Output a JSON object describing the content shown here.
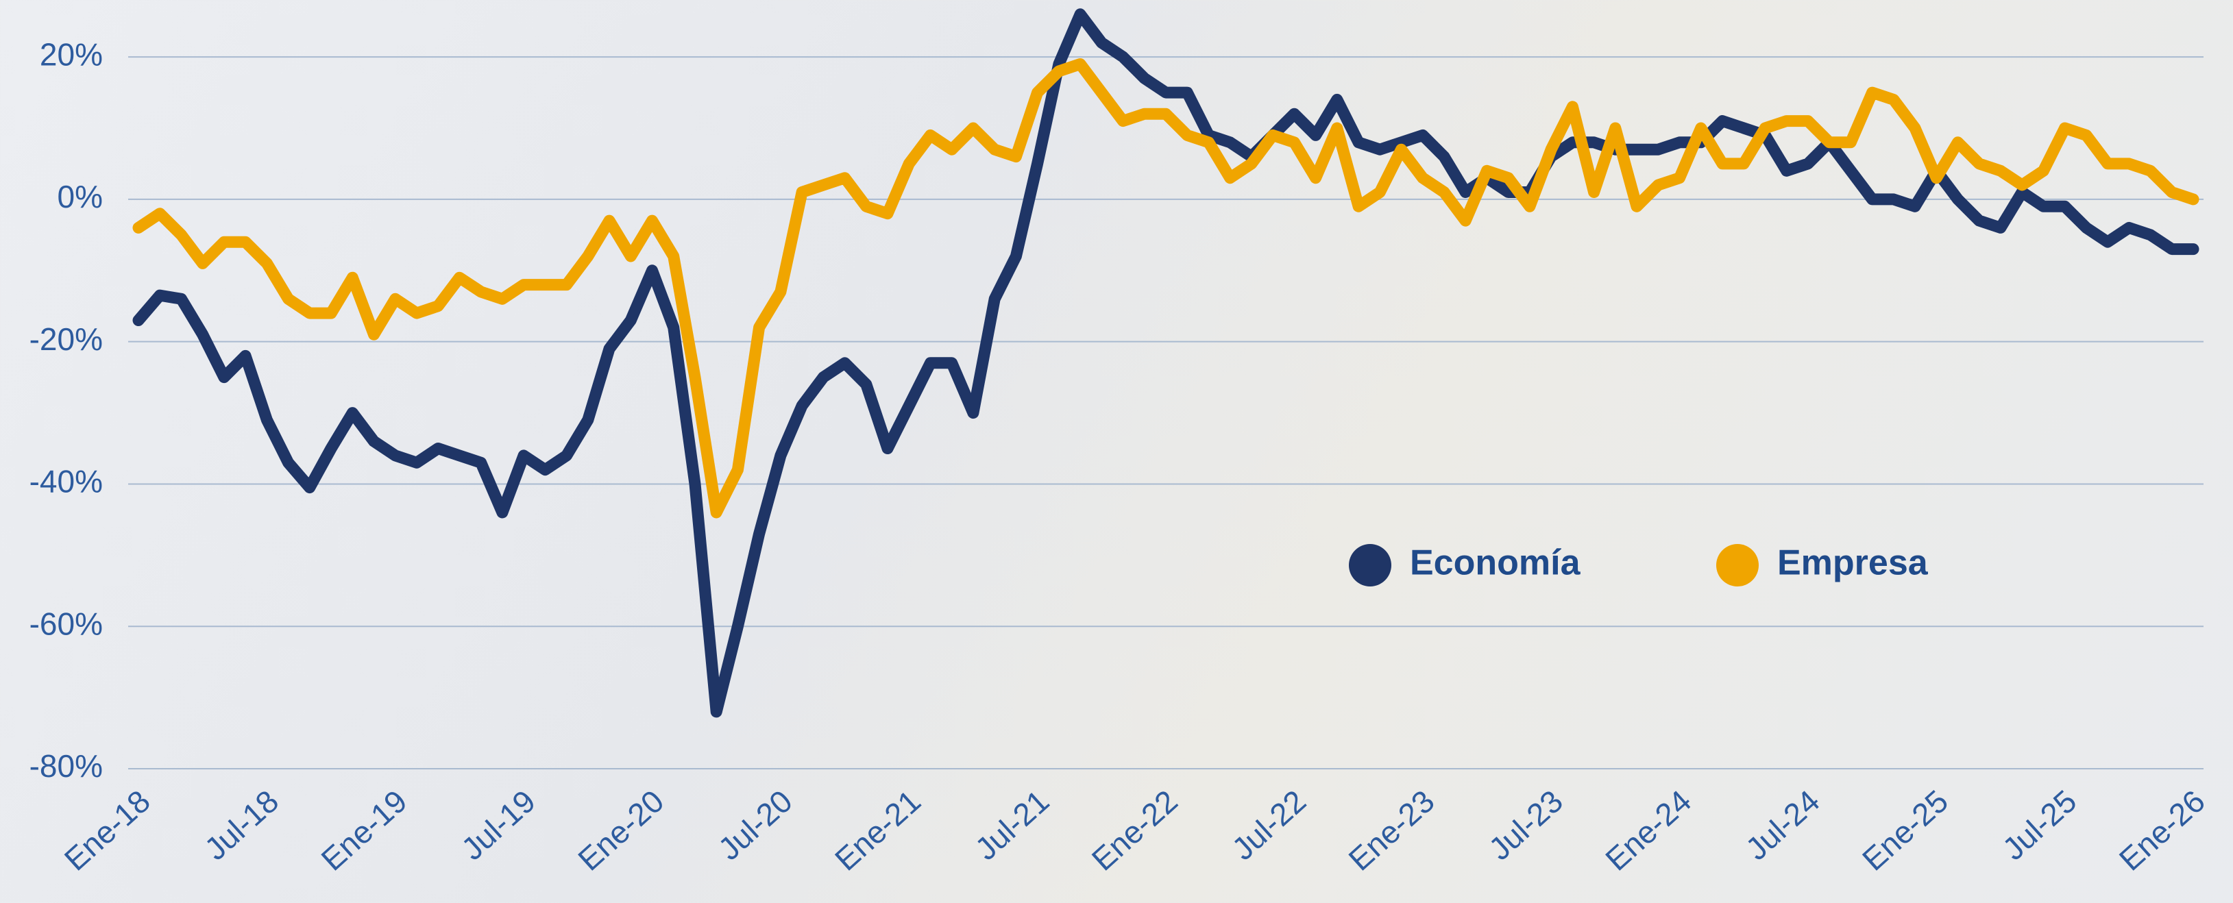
{
  "chart_data": {
    "type": "line",
    "categories": [
      "Ene-18",
      null,
      null,
      null,
      null,
      null,
      "Jul-18",
      null,
      null,
      null,
      null,
      null,
      "Ene-19",
      null,
      null,
      null,
      null,
      null,
      "Jul-19",
      null,
      null,
      null,
      null,
      null,
      "Ene-20",
      null,
      null,
      null,
      null,
      null,
      "Jul-20",
      null,
      null,
      null,
      null,
      null,
      "Ene-21",
      null,
      null,
      null,
      null,
      null,
      "Jul-21",
      null,
      null,
      null,
      null,
      null,
      "Ene-22",
      null,
      null,
      null,
      null,
      null,
      "Jul-22",
      null,
      null,
      null,
      null,
      null,
      "Ene-23",
      null,
      null,
      null,
      null,
      null,
      "Jul-23",
      null,
      null,
      null,
      null,
      null,
      "Ene-24",
      null,
      null,
      null,
      null,
      null,
      "Jul-24",
      null,
      null,
      null,
      null,
      null,
      "Ene-25",
      null,
      null,
      null,
      null,
      null,
      "Jul-25",
      null,
      null,
      null,
      null,
      null,
      "Ene-26"
    ],
    "series": [
      {
        "name": "Economía",
        "color": "#1f3566",
        "values": [
          -17,
          -13.5,
          -14,
          -19,
          -25,
          -22,
          -31,
          -37,
          -40.5,
          -35,
          -30,
          -34,
          -36,
          -37,
          -35,
          -36,
          -37,
          -44,
          -36,
          -38,
          -36,
          -31,
          -21,
          -17,
          -10,
          -18,
          -40,
          -72,
          -60,
          -47,
          -36,
          -29,
          -25,
          -23,
          -26,
          -35,
          -29,
          -23,
          -23,
          -30,
          -14,
          -8,
          5,
          19,
          26,
          22,
          20,
          17,
          15,
          15,
          9,
          8,
          6,
          9,
          12,
          9,
          14,
          8,
          7,
          8,
          9,
          6,
          1,
          3,
          1,
          1,
          6,
          8,
          8,
          7,
          7,
          7,
          8,
          8,
          11,
          10,
          9,
          4,
          5,
          8,
          4,
          0,
          0,
          -1,
          4,
          0,
          -3,
          -4,
          1,
          -1,
          -1,
          -4,
          -6,
          -4,
          -5,
          -7,
          -7
        ]
      },
      {
        "name": "Empresa",
        "color": "#f0a500",
        "values": [
          -4,
          -2,
          -5,
          -9,
          -6,
          -6,
          -9,
          -14,
          -16,
          -16,
          -11,
          -19,
          -14,
          -16,
          -15,
          -11,
          -13,
          -14,
          -12,
          -12,
          -12,
          -8,
          -3,
          -8,
          -3,
          -8,
          -25,
          -44,
          -38,
          -18,
          -13,
          1,
          2,
          3,
          -1,
          -2,
          5,
          9,
          7,
          10,
          7,
          6,
          15,
          18,
          19,
          15,
          11,
          12,
          12,
          9,
          8,
          3,
          5,
          9,
          8,
          3,
          10,
          -1,
          1,
          7,
          3,
          1,
          -3,
          4,
          3,
          -1,
          7,
          13,
          1,
          10,
          -1,
          2,
          3,
          10,
          5,
          5,
          10,
          11,
          11,
          8,
          8,
          15,
          14,
          10,
          3,
          8,
          5,
          4,
          2,
          4,
          10,
          9,
          5,
          5,
          4,
          1,
          0
        ]
      }
    ],
    "ylim": [
      -80,
      28
    ],
    "yticks": [
      {
        "value": 20,
        "label": "20%"
      },
      {
        "value": 0,
        "label": "0%"
      },
      {
        "value": -20,
        "label": "-20%"
      },
      {
        "value": -40,
        "label": "-40%"
      },
      {
        "value": -60,
        "label": "-60%"
      },
      {
        "value": -80,
        "label": "-80%"
      }
    ],
    "grid": true
  }
}
